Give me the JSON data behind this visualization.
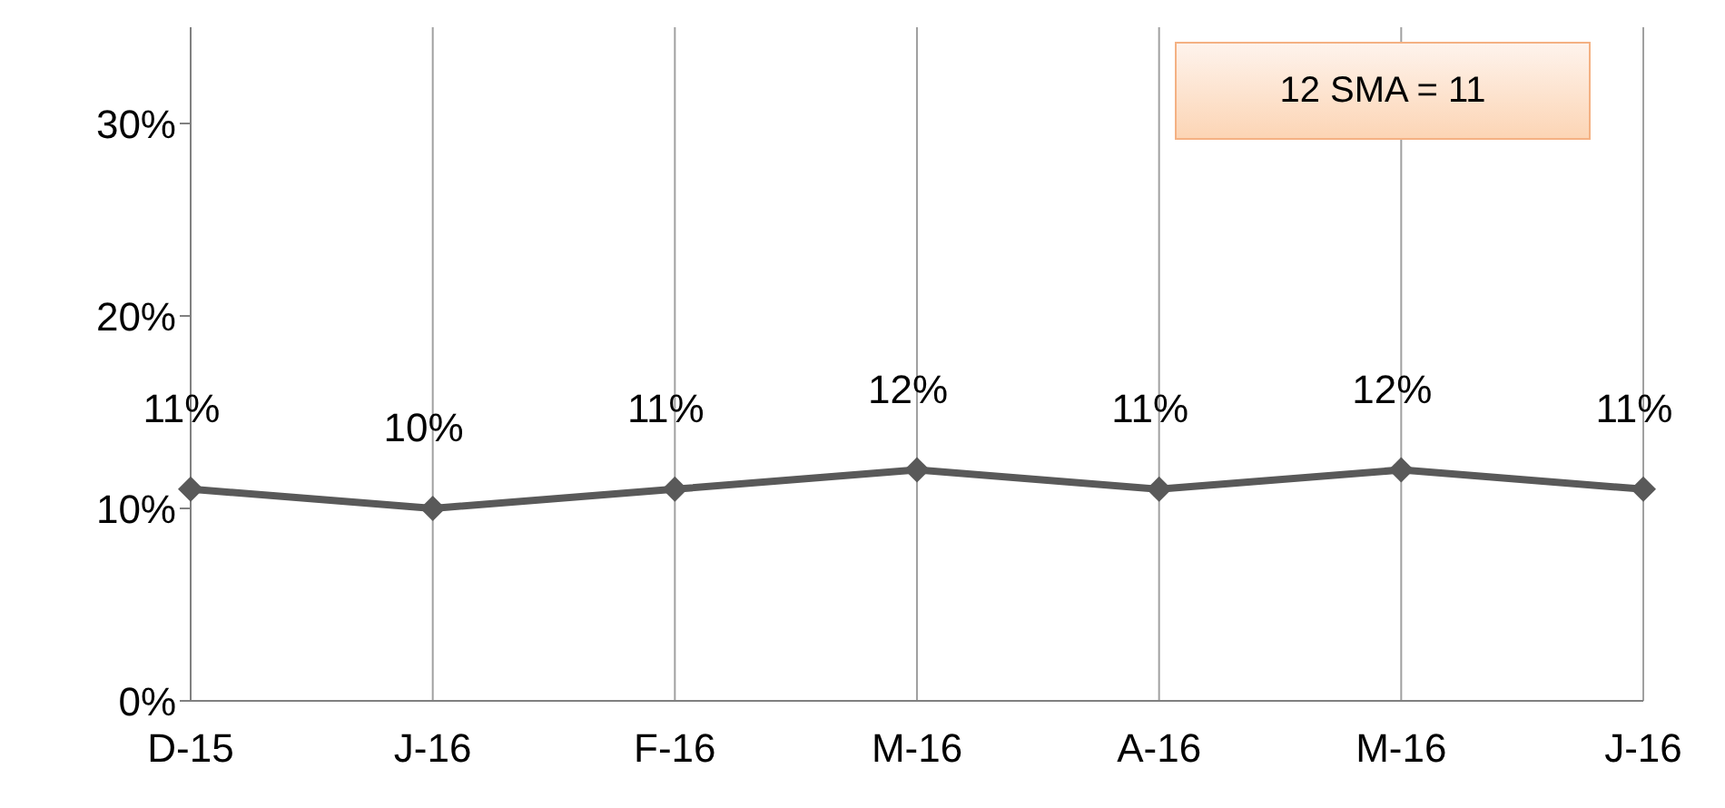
{
  "chart_data": {
    "type": "line",
    "categories": [
      "D-15",
      "J-16",
      "F-16",
      "M-16",
      "A-16",
      "M-16",
      "J-16"
    ],
    "series": [
      {
        "color": "#595959",
        "values": [
          11,
          10,
          11,
          12,
          11,
          12,
          11
        ],
        "value_labels": [
          "11%",
          "10%",
          "11%",
          "12%",
          "11%",
          "12%",
          "11%"
        ]
      }
    ],
    "ylim": [
      0,
      35
    ],
    "yticks": [
      {
        "value": 0,
        "label": "0%"
      },
      {
        "value": 10,
        "label": "10%"
      },
      {
        "value": 20,
        "label": "20%"
      },
      {
        "value": 30,
        "label": "30%"
      }
    ],
    "grid": "x",
    "marker": "diamond",
    "line_style": "solid",
    "annotations": [
      "12 SMA = 11"
    ]
  }
}
